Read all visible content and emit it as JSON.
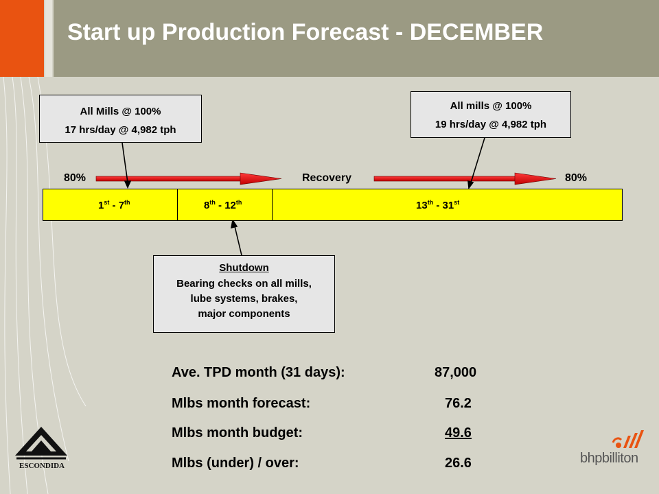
{
  "title": "Start up Production Forecast - DECEMBER",
  "callout_left": {
    "line1": "All Mills @ 100%",
    "line2": "17 hrs/day @ 4,982 tph"
  },
  "callout_right": {
    "line1": "All mills @ 100%",
    "line2": "19 hrs/day  @ 4,982 tph"
  },
  "callout_shutdown": {
    "title": "Shutdown",
    "line1": "Bearing checks on all mills,",
    "line2": "lube systems, brakes,",
    "line3": "major components"
  },
  "timeline": {
    "left_pct": "80%",
    "middle_label": "Recovery",
    "right_pct": "80%",
    "segments": [
      {
        "start": "1",
        "start_sup": "st",
        "sep": " - ",
        "end": "7",
        "end_sup": "th"
      },
      {
        "start": "8",
        "start_sup": "th",
        "sep": " - ",
        "end": "12",
        "end_sup": "th"
      },
      {
        "start": "13",
        "start_sup": "th",
        "sep": " - ",
        "end": "31",
        "end_sup": "st"
      }
    ]
  },
  "stats": [
    {
      "label": "Ave. TPD month (31 days):",
      "value": "87,000",
      "underline": false
    },
    {
      "label": "Mlbs month forecast:",
      "value": "76.2",
      "underline": false
    },
    {
      "label": "Mlbs month budget:",
      "value": "49.6",
      "underline": true
    },
    {
      "label": "Mlbs (under) / over:",
      "value": "26.6",
      "underline": false
    }
  ],
  "logos": {
    "left": "ESCONDIDA",
    "right": "bhpbilliton"
  },
  "colors": {
    "orange": "#e95311",
    "header": "#9b9a83",
    "background": "#d5d4c8",
    "timeline": "#ffff00",
    "arrow": "#e60000"
  }
}
